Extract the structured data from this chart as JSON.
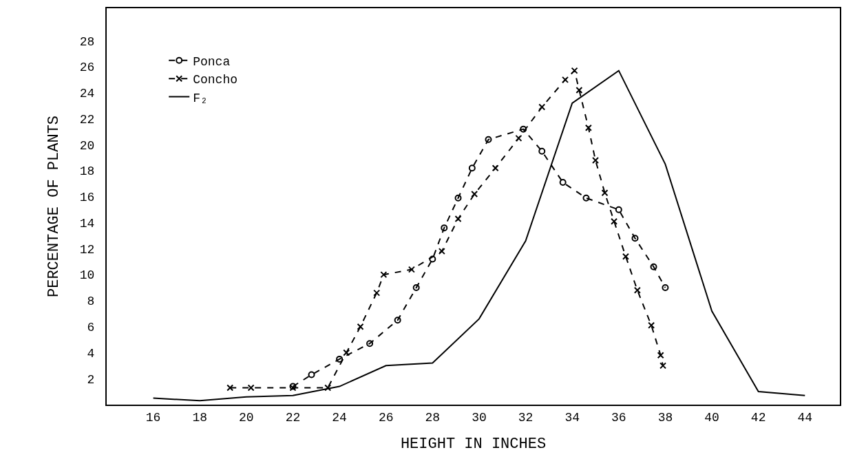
{
  "chart_data": {
    "type": "line",
    "xlabel": "HEIGHT IN INCHES",
    "ylabel": "PERCENTAGE OF PLANTS",
    "xlim": [
      14,
      45.5
    ],
    "xticks": [
      16,
      18,
      20,
      22,
      24,
      26,
      28,
      30,
      32,
      34,
      36,
      38,
      40,
      42,
      44
    ],
    "ylim": [
      0,
      30.5
    ],
    "yticks": [
      2,
      4,
      6,
      8,
      10,
      12,
      14,
      16,
      18,
      20,
      22,
      24,
      26,
      28
    ],
    "grid": false,
    "legend": "top left",
    "series": [
      {
        "name": "Ponca",
        "color": "#000000",
        "marker": "circle",
        "line_style": "dashed",
        "x": [
          22,
          22.8,
          24,
          25.3,
          26.5,
          27.3,
          28,
          28.5,
          29.1,
          29.7,
          30.4,
          31.9,
          32.7,
          33.6,
          34.6,
          36,
          36.7,
          37.5,
          38
        ],
        "values": [
          1.4,
          2.3,
          3.5,
          4.7,
          6.5,
          9.0,
          11.2,
          13.6,
          15.9,
          18.2,
          20.4,
          21.2,
          19.5,
          17.1,
          15.9,
          15.0,
          12.8,
          10.6,
          9.0
        ]
      },
      {
        "name": "Concho",
        "color": "#000000",
        "marker": "cross",
        "line_style": "dashed",
        "x": [
          19.3,
          20.2,
          22,
          23.5,
          24.3,
          24.9,
          25.6,
          25.9,
          27.1,
          28.4,
          29.1,
          29.8,
          30.7,
          31.7,
          32.7,
          33.7,
          34.1,
          34.3,
          34.7,
          35,
          35.4,
          35.8,
          36.3,
          36.8,
          37.4,
          37.8,
          37.9
        ],
        "values": [
          1.3,
          1.3,
          1.3,
          1.3,
          4.0,
          6.0,
          8.6,
          10.0,
          10.4,
          11.8,
          14.3,
          16.2,
          18.2,
          20.5,
          22.9,
          25.0,
          25.7,
          24.2,
          21.3,
          18.8,
          16.3,
          14.1,
          11.4,
          8.8,
          6.1,
          3.8,
          3.0
        ]
      },
      {
        "name": "F₂",
        "color": "#000000",
        "marker": "none",
        "line_style": "solid",
        "x": [
          16,
          18,
          20,
          22,
          24,
          26,
          28,
          30,
          32,
          34,
          36,
          38,
          40,
          42,
          44
        ],
        "values": [
          0.5,
          0.3,
          0.6,
          0.7,
          1.4,
          3.0,
          3.2,
          6.6,
          12.6,
          23.2,
          25.7,
          18.5,
          7.2,
          1.0,
          0.7
        ]
      }
    ]
  }
}
